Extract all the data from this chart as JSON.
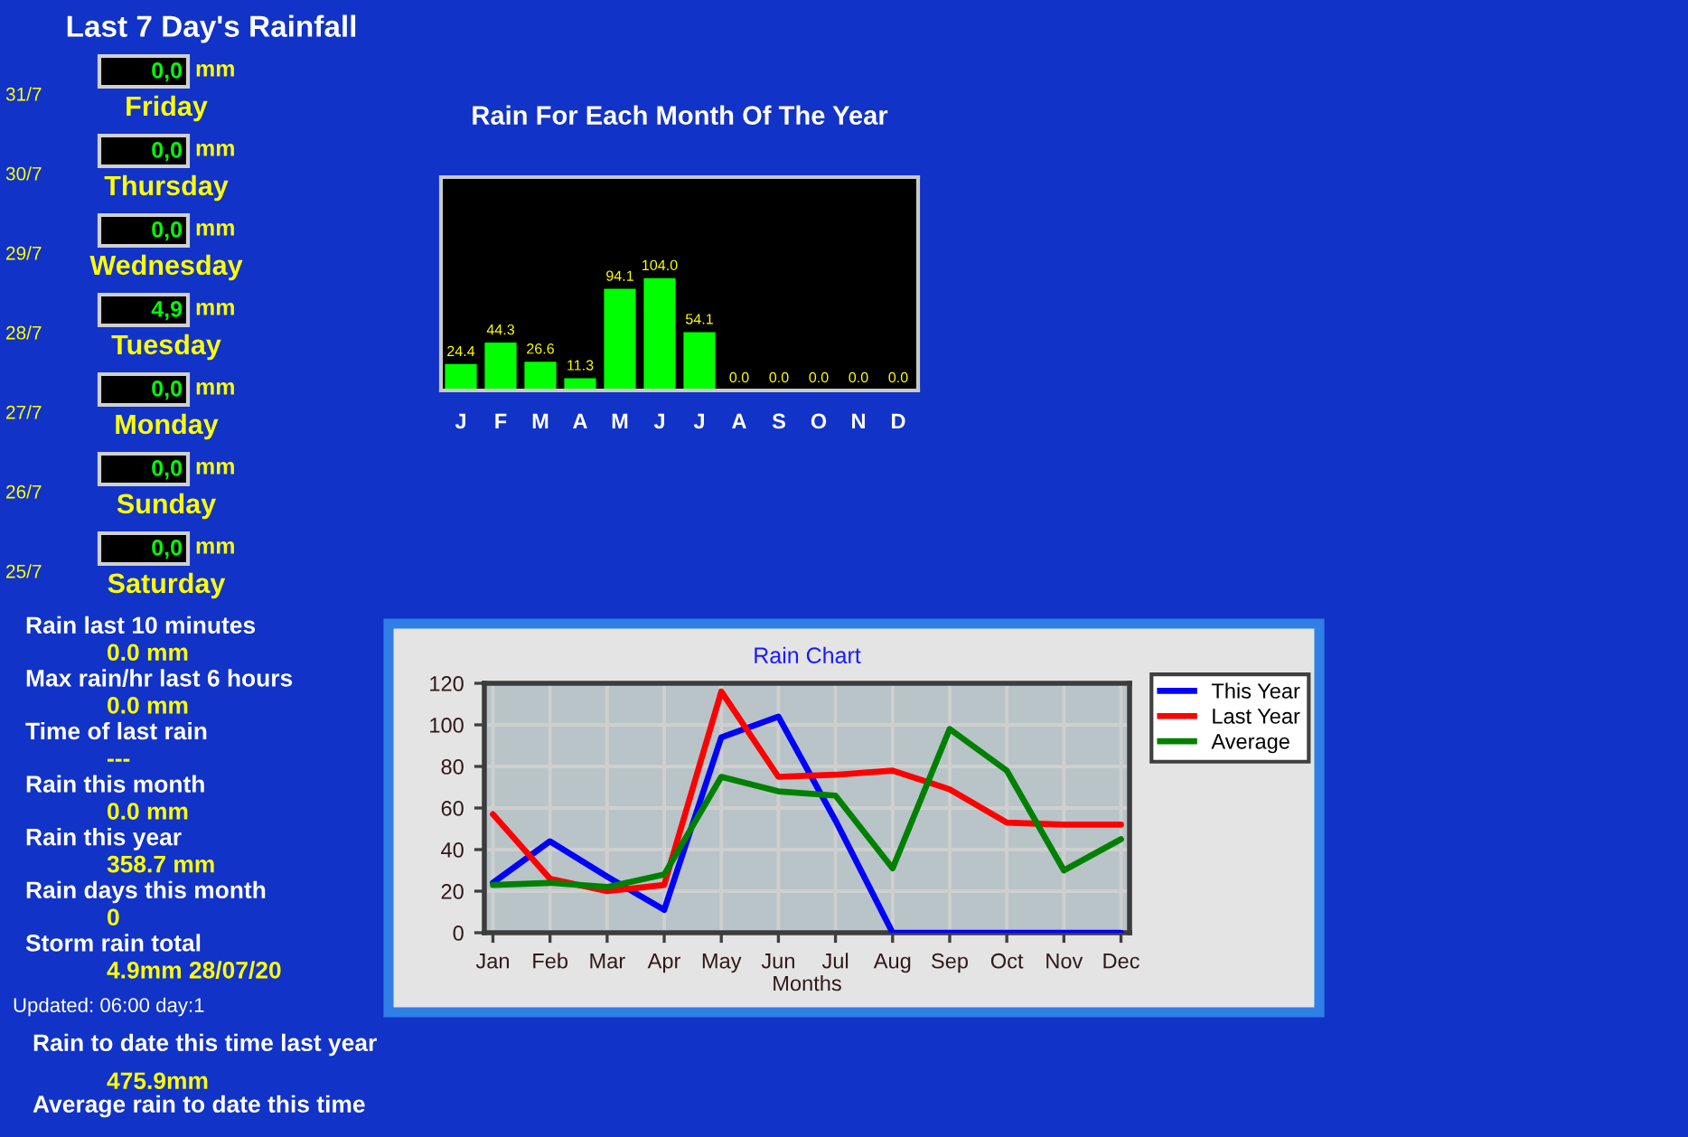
{
  "chart_data": [
    {
      "type": "other",
      "title": "Last 7 Day's Rainfall",
      "categories": [
        "Friday",
        "Thursday",
        "Wednesday",
        "Tuesday",
        "Monday",
        "Sunday",
        "Saturday"
      ],
      "value_labels": [
        "0,0",
        "0,0",
        "0,0",
        "4,9",
        "0,0",
        "0,0",
        "0,0"
      ],
      "annotations": [
        "31/7",
        "30/7",
        "29/7",
        "28/7",
        "27/7",
        "26/7",
        "25/7",
        "mm"
      ]
    },
    {
      "type": "other",
      "categories": [
        "Rain last 10 minutes",
        "Max rain/hr last 6 hours",
        "Time of last rain",
        "Rain this month",
        "Rain this year",
        "Rain days this month",
        "Storm rain total"
      ],
      "value_labels": [
        "0.0 mm",
        "0.0 mm",
        "---",
        "0.0 mm",
        "358.7 mm",
        "0",
        "4.9mm 28/07/20"
      ]
    },
    {
      "type": "other",
      "annotations": [
        "Updated: 06:00 day:1"
      ],
      "categories": [
        "Rain to date this time last year",
        "Average rain to date this time"
      ],
      "value_labels": [
        "475.9mm",
        null
      ]
    },
    {
      "type": "bar",
      "title": "Rain For Each Month Of The Year",
      "categories": [
        "J",
        "F",
        "M",
        "A",
        "M",
        "J",
        "J",
        "A",
        "S",
        "O",
        "N",
        "D"
      ],
      "values": [
        24.4,
        44.3,
        26.6,
        11.3,
        94.1,
        104.0,
        54.1,
        0.0,
        0.0,
        0.0,
        0.0,
        0.0
      ],
      "value_labels": [
        "24.4",
        "44.3",
        "26.6",
        "11.3",
        "94.1",
        "104.0",
        "54.1",
        "0.0",
        "0.0",
        "0.0",
        "0.0",
        "0.0"
      ],
      "color": "#00ff00",
      "tick_labels": "x"
    },
    {
      "type": "line",
      "title": "Rain Chart",
      "xlabel": "Months",
      "categories": [
        "Jan",
        "Feb",
        "Mar",
        "Apr",
        "May",
        "Jun",
        "Jul",
        "Aug",
        "Sep",
        "Oct",
        "Nov",
        "Dec"
      ],
      "series": [
        {
          "name": "This Year",
          "color": "#0000ff",
          "values": [
            24,
            44,
            27,
            11,
            94,
            104,
            54,
            0,
            0,
            0,
            0,
            0
          ]
        },
        {
          "name": "Last Year",
          "color": "#ff0000",
          "values": [
            57,
            26,
            20,
            23,
            116,
            75,
            76,
            78,
            69,
            53,
            52,
            52
          ]
        },
        {
          "name": "Average",
          "color": "#008000",
          "values": [
            23,
            24,
            22,
            28,
            75,
            68,
            66,
            31,
            98,
            78,
            30,
            45
          ]
        }
      ],
      "ylim": [
        0,
        120
      ],
      "yticks": [
        0,
        20,
        40,
        60,
        80,
        100,
        120
      ],
      "grid": true,
      "legend": "top right"
    }
  ]
}
